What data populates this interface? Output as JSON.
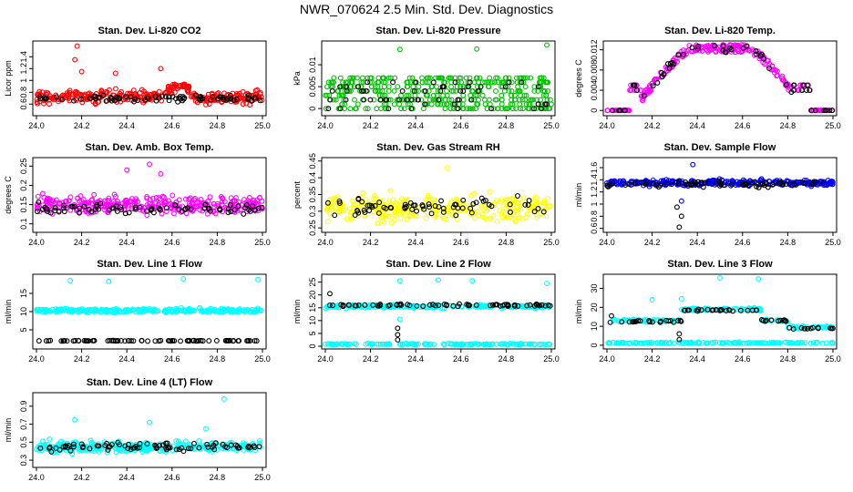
{
  "page": {
    "title": "NWR_070624  2.5 Min. Std. Dev. Diagnostics"
  },
  "colors": {
    "black": "#000000",
    "red": "#ff0000",
    "green": "#00c000",
    "magenta": "#ff00ff",
    "yellow": "#ffff00",
    "blue": "#0000ff",
    "cyan": "#00ffff"
  },
  "chart_data": [
    {
      "type": "scatter",
      "title": "Stan. Dev. Li-820 CO2",
      "ylabel": "Licor ppm",
      "xlim": [
        24.0,
        25.0
      ],
      "ylim": [
        0.45,
        1.62
      ],
      "xticks": [
        "24.0",
        "24.2",
        "24.4",
        "24.6",
        "24.8",
        "25.0"
      ],
      "yticks": [
        0.6,
        0.8,
        1.0,
        1.2,
        1.4
      ],
      "series": [
        {
          "name": "primary",
          "color": "#ff0000",
          "base": 0.72,
          "spread": 0.18,
          "count": 320,
          "bumps": [
            [
              24.55,
              24.7,
              0.2
            ]
          ],
          "outliers": [
            [
              24.18,
              1.58
            ],
            [
              24.17,
              1.35
            ],
            [
              24.2,
              1.15
            ],
            [
              24.35,
              1.12
            ],
            [
              24.55,
              1.2
            ]
          ]
        },
        {
          "name": "secondary",
          "color": "#000000",
          "base": 0.7,
          "spread": 0.1,
          "count": 80
        }
      ]
    },
    {
      "type": "scatter",
      "title": "Stan. Dev. Li-820 Pressure",
      "ylabel": "kPa",
      "xlim": [
        24.0,
        25.0
      ],
      "ylim": [
        -0.001,
        0.0148
      ],
      "xticks": [
        "24.0",
        "24.2",
        "24.4",
        "24.6",
        "24.8",
        "25.0"
      ],
      "yticks": [
        0.0,
        0.005,
        0.01
      ],
      "series": [
        {
          "name": "primary",
          "color": "#00c000",
          "base": 0.003,
          "spread": 0.005,
          "count": 400,
          "levels": [
            0.0,
            0.001,
            0.002,
            0.003,
            0.004,
            0.005,
            0.006,
            0.007
          ],
          "outliers": [
            [
              24.33,
              0.0135
            ],
            [
              24.67,
              0.0136
            ],
            [
              24.98,
              0.0145
            ]
          ]
        },
        {
          "name": "secondary",
          "color": "#000000",
          "base": 0.002,
          "spread": 0.004,
          "count": 60,
          "levels": [
            0.0,
            0.001,
            0.002,
            0.004,
            0.005,
            0.006
          ]
        }
      ]
    },
    {
      "type": "scatter",
      "title": "Stan. Dev. Li-820 Temp.",
      "ylabel": "degrees C",
      "xlim": [
        24.0,
        25.0
      ],
      "ylim": [
        -0.0005,
        0.0132
      ],
      "xticks": [
        "24.0",
        "24.2",
        "24.4",
        "24.6",
        "24.8",
        "25.0"
      ],
      "yticks": [
        0.0,
        0.004,
        0.008,
        0.012
      ],
      "series": [
        {
          "name": "primary",
          "color": "#ff00ff",
          "profile": "arch",
          "count": 260
        },
        {
          "name": "secondary",
          "color": "#000000",
          "profile": "arch",
          "count": 60
        }
      ]
    },
    {
      "type": "scatter",
      "title": "Stan. Dev. Amb. Box Temp.",
      "ylabel": "degrees C",
      "xlim": [
        24.0,
        25.0
      ],
      "ylim": [
        0.085,
        0.265
      ],
      "xticks": [
        "24.0",
        "24.2",
        "24.4",
        "24.6",
        "24.8",
        "25.0"
      ],
      "yticks": [
        0.1,
        0.15,
        0.2,
        0.25
      ],
      "series": [
        {
          "name": "primary",
          "color": "#ff00ff",
          "base": 0.15,
          "spread": 0.04,
          "count": 320,
          "outliers": [
            [
              24.5,
              0.255
            ],
            [
              24.4,
              0.24
            ],
            [
              24.55,
              0.23
            ]
          ]
        },
        {
          "name": "secondary",
          "color": "#000000",
          "base": 0.14,
          "spread": 0.025,
          "count": 80
        }
      ]
    },
    {
      "type": "scatter",
      "title": "Stan. Dev. Gas Stream RH",
      "ylabel": "percent",
      "xlim": [
        24.0,
        25.0
      ],
      "ylim": [
        0.245,
        0.452
      ],
      "xticks": [
        "24.0",
        "24.2",
        "24.4",
        "24.6",
        "24.8",
        "25.0"
      ],
      "yticks": [
        0.25,
        0.3,
        0.35,
        0.4,
        0.45
      ],
      "series": [
        {
          "name": "primary",
          "color": "#ffff00",
          "base": 0.31,
          "spread": 0.06,
          "count": 320,
          "outliers": [
            [
              24.54,
              0.43
            ]
          ]
        },
        {
          "name": "secondary",
          "color": "#000000",
          "base": 0.31,
          "spread": 0.05,
          "count": 70
        }
      ]
    },
    {
      "type": "scatter",
      "title": "Stan. Dev. Sample Flow",
      "ylabel": "ml/min",
      "xlim": [
        24.0,
        25.0
      ],
      "ylim": [
        0.58,
        1.72
      ],
      "xticks": [
        "24.0",
        "24.2",
        "24.4",
        "24.6",
        "24.8",
        "25.0"
      ],
      "yticks": [
        0.6,
        0.8,
        1.0,
        1.2,
        1.4,
        1.6
      ],
      "series": [
        {
          "name": "primary",
          "color": "#0000ff",
          "base": 1.35,
          "spread": 0.08,
          "count": 320,
          "outliers": [
            [
              24.33,
              1.05
            ],
            [
              24.38,
              1.65
            ]
          ]
        },
        {
          "name": "secondary",
          "color": "#000000",
          "base": 1.33,
          "spread": 0.08,
          "count": 80,
          "outliers": [
            [
              24.32,
              0.62
            ],
            [
              24.33,
              0.8
            ],
            [
              24.31,
              0.95
            ]
          ]
        }
      ]
    },
    {
      "type": "scatter",
      "title": "Stan. Dev. Line 1 Flow",
      "ylabel": "ml/min",
      "xlim": [
        24.0,
        25.0
      ],
      "ylim": [
        0.5,
        19.5
      ],
      "xticks": [
        "24.0",
        "24.2",
        "24.4",
        "24.6",
        "24.8",
        "25.0"
      ],
      "yticks": [
        5,
        10,
        15
      ],
      "series": [
        {
          "name": "primary",
          "color": "#00ffff",
          "base": 10.3,
          "spread": 0.9,
          "count": 300,
          "outliers": [
            [
              24.15,
              18.5
            ],
            [
              24.32,
              18.3
            ],
            [
              24.65,
              19.0
            ],
            [
              24.98,
              18.8
            ]
          ]
        },
        {
          "name": "secondary",
          "color": "#000000",
          "base": 2.0,
          "spread": 0.15,
          "count": 80
        }
      ]
    },
    {
      "type": "scatter",
      "title": "Stan. Dev. Line 2 Flow",
      "ylabel": "ml/min",
      "xlim": [
        24.0,
        25.0
      ],
      "ylim": [
        0.0,
        27.0
      ],
      "xticks": [
        "24.0",
        "24.2",
        "24.4",
        "24.6",
        "24.8",
        "25.0"
      ],
      "yticks": [
        0,
        5,
        10,
        15,
        20,
        25
      ],
      "series": [
        {
          "name": "primary",
          "color": "#00ffff",
          "base": 15.5,
          "spread": 1.2,
          "count": 220,
          "outliers": [
            [
              24.33,
              25.5
            ],
            [
              24.5,
              25.8
            ],
            [
              24.65,
              25.5
            ],
            [
              24.98,
              24.5
            ],
            [
              24.33,
              10.5
            ]
          ]
        },
        {
          "name": "tertiary",
          "color": "#00ffff",
          "base": 0.8,
          "spread": 0.4,
          "count": 160
        },
        {
          "name": "secondary",
          "color": "#000000",
          "base": 16.0,
          "spread": 0.8,
          "count": 70,
          "outliers": [
            [
              24.02,
              20.5
            ],
            [
              24.32,
              7.0
            ],
            [
              24.32,
              4.5
            ],
            [
              24.32,
              2.5
            ]
          ]
        }
      ]
    },
    {
      "type": "scatter",
      "title": "Stan. Dev. Line 3 Flow",
      "ylabel": "ml/min",
      "xlim": [
        24.0,
        25.0
      ],
      "ylim": [
        -0.5,
        36.0
      ],
      "xticks": [
        "24.0",
        "24.2",
        "24.4",
        "24.6",
        "24.8",
        "25.0"
      ],
      "yticks": [
        0,
        10,
        20,
        30
      ],
      "series": [
        {
          "name": "primary",
          "color": "#00ffff",
          "steps": [
            [
              24.0,
              24.33,
              13.0
            ],
            [
              24.33,
              24.68,
              19.0
            ],
            [
              24.68,
              24.8,
              13.0
            ],
            [
              24.8,
              25.0,
              9.5
            ]
          ],
          "spread": 1.2,
          "count": 200,
          "outliers": [
            [
              24.2,
              24.0
            ],
            [
              24.33,
              24.5
            ],
            [
              24.5,
              35.5
            ],
            [
              24.67,
              35.0
            ],
            [
              24.8,
              11.5
            ]
          ]
        },
        {
          "name": "tertiary",
          "color": "#00ffff",
          "base": 1.3,
          "spread": 0.6,
          "count": 150
        },
        {
          "name": "secondary",
          "color": "#000000",
          "steps": [
            [
              24.0,
              24.33,
              12.5
            ],
            [
              24.33,
              24.68,
              18.5
            ],
            [
              24.68,
              24.8,
              13.0
            ],
            [
              24.8,
              25.0,
              9.0
            ]
          ],
          "spread": 0.8,
          "count": 70,
          "outliers": [
            [
              24.02,
              15.5
            ],
            [
              24.32,
              6.0
            ],
            [
              24.32,
              3.0
            ]
          ]
        }
      ]
    },
    {
      "type": "scatter",
      "title": "Stan. Dev. Line 4 (LT) Flow",
      "ylabel": "ml/min",
      "xlim": [
        24.0,
        25.0
      ],
      "ylim": [
        0.25,
        1.02
      ],
      "xticks": [
        "24.0",
        "24.2",
        "24.4",
        "24.6",
        "24.8",
        "25.0"
      ],
      "yticks": [
        0.3,
        0.5,
        0.7,
        0.9
      ],
      "series": [
        {
          "name": "primary",
          "color": "#00ffff",
          "base": 0.45,
          "spread": 0.1,
          "count": 320,
          "outliers": [
            [
              24.83,
              0.98
            ],
            [
              24.17,
              0.75
            ],
            [
              24.5,
              0.72
            ],
            [
              24.75,
              0.65
            ]
          ]
        },
        {
          "name": "secondary",
          "color": "#000000",
          "base": 0.45,
          "spread": 0.08,
          "count": 80
        }
      ]
    }
  ]
}
